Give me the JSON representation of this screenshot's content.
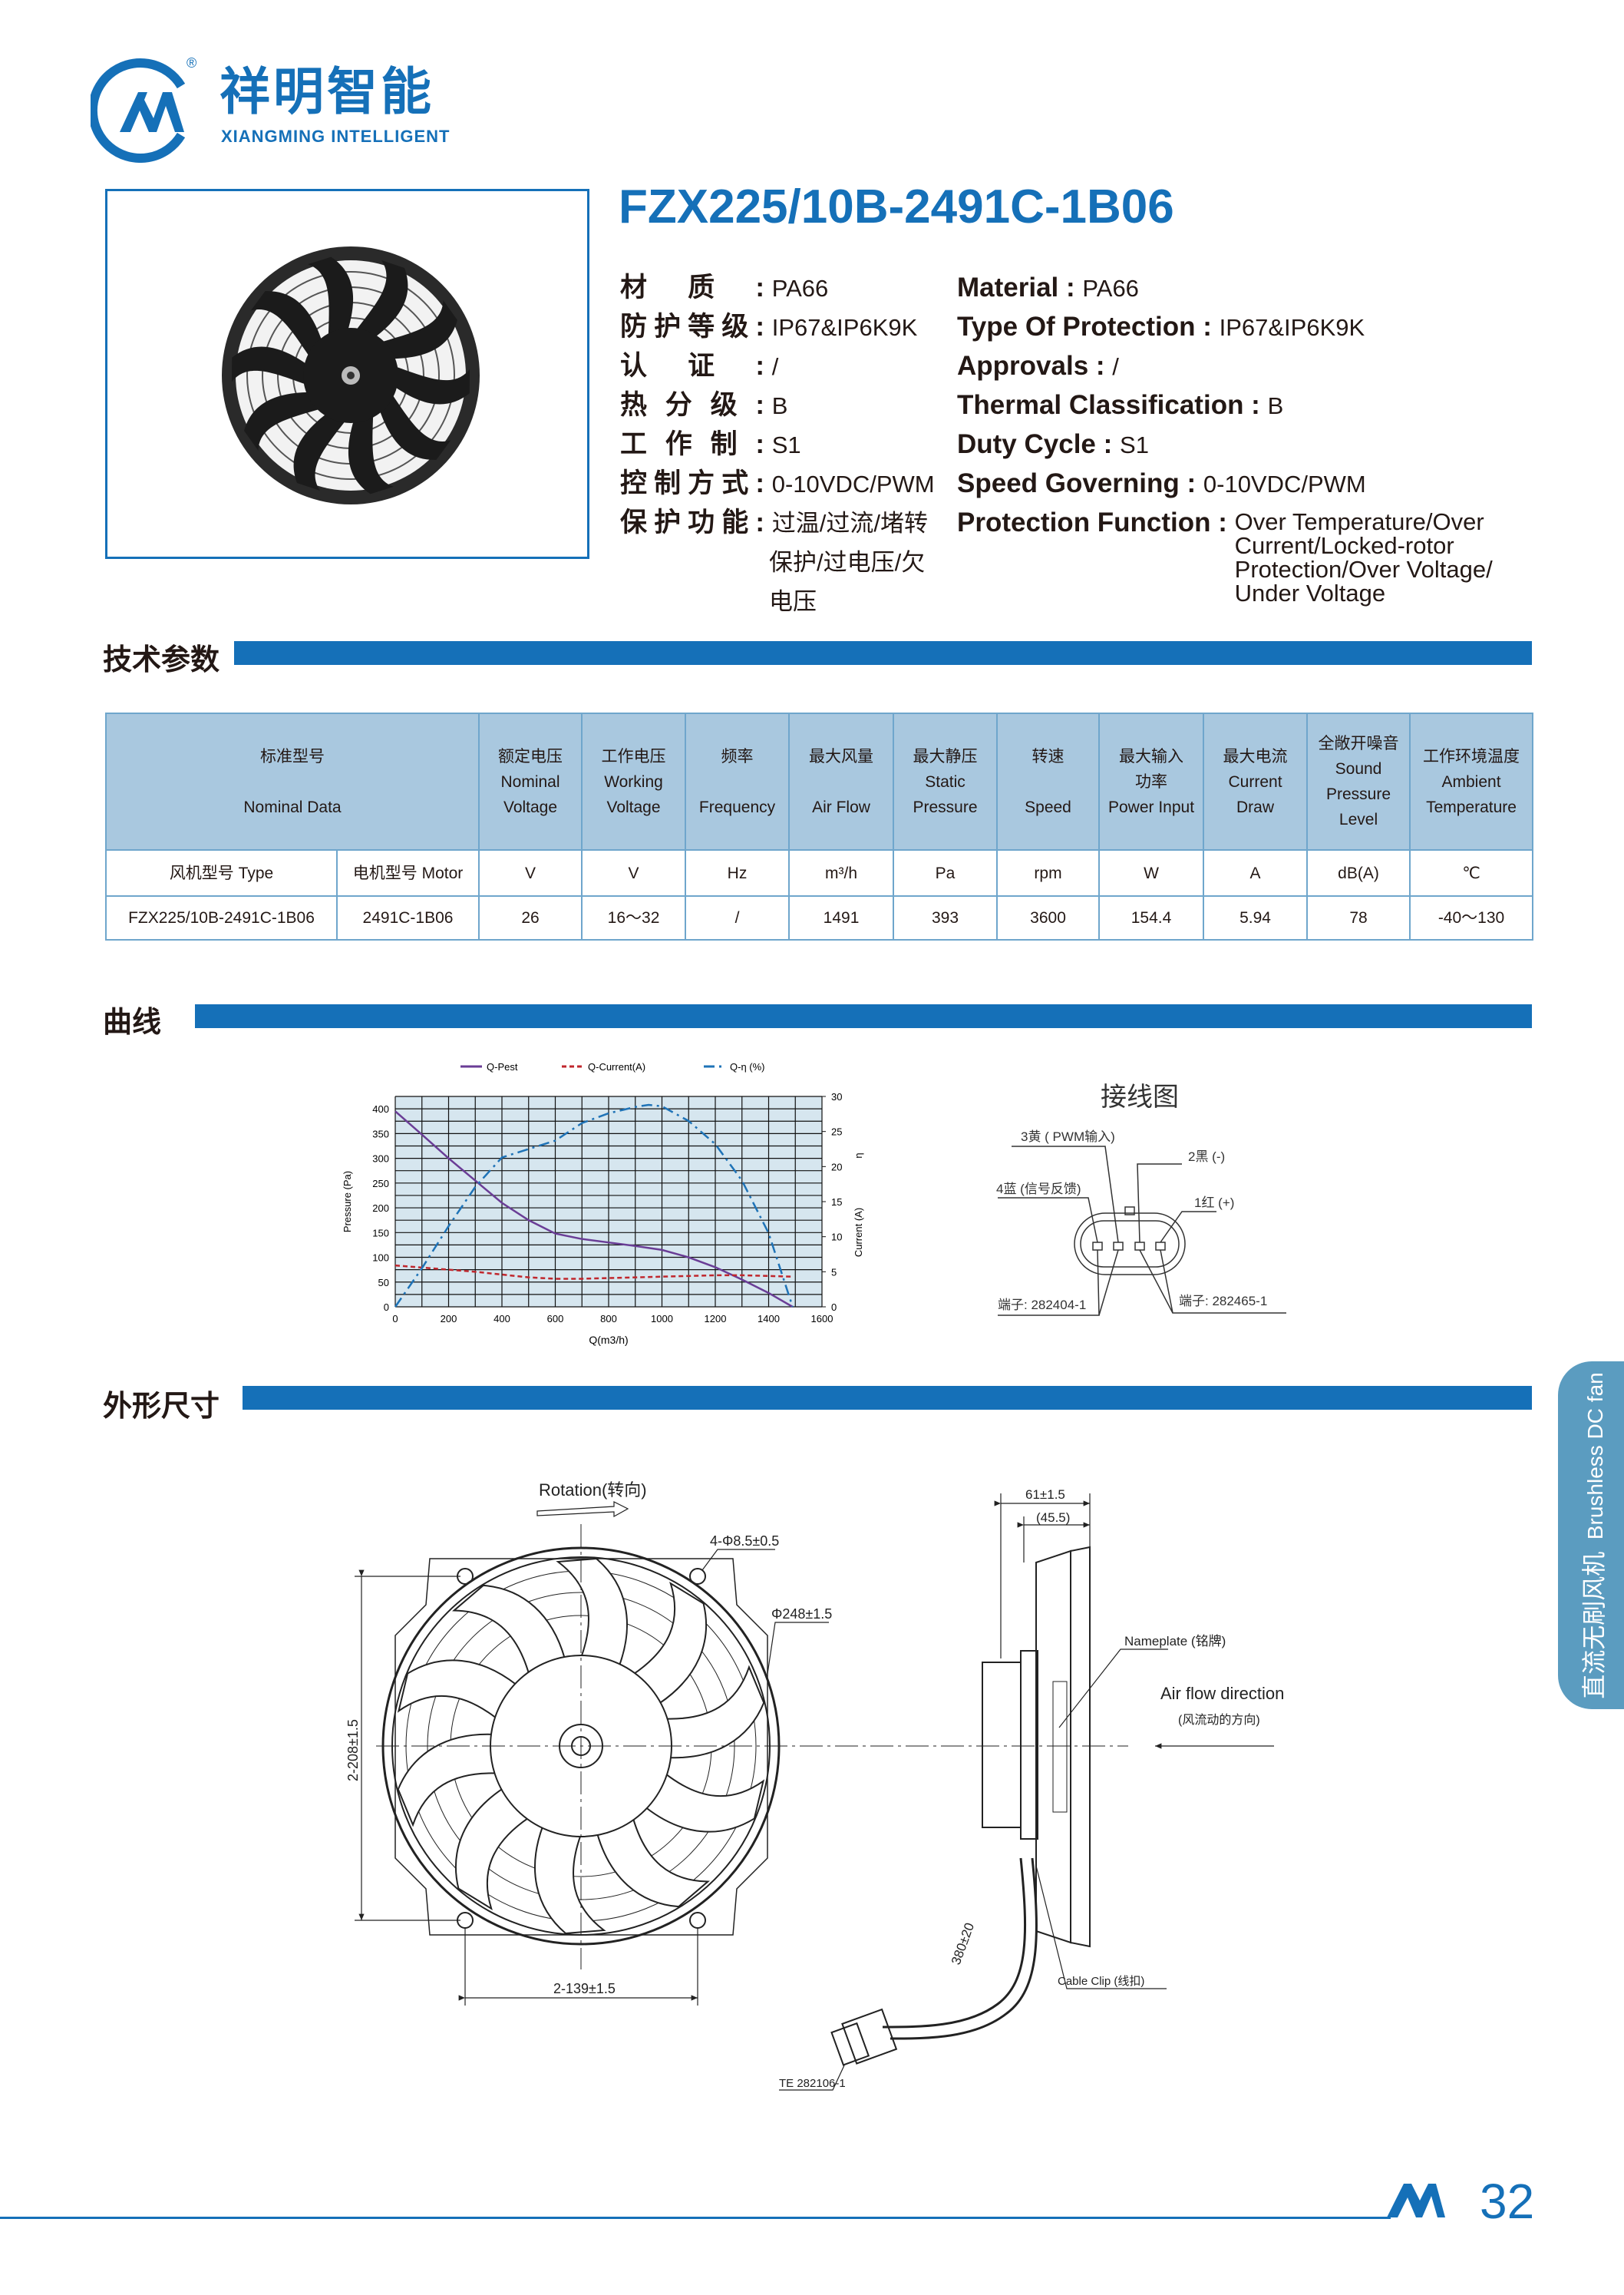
{
  "brand": {
    "name_cn": "祥明智能",
    "name_en": "XIANGMING INTELLIGENT",
    "registered": "®",
    "color": "#1570b8"
  },
  "product": {
    "model": "FZX225/10B-2491C-1B06"
  },
  "specs_cn": [
    {
      "label": "材质:",
      "value": "PA66"
    },
    {
      "label": "防护等级:",
      "value": "IP67&IP6K9K"
    },
    {
      "label": "认证:",
      "value": "/"
    },
    {
      "label": "热分级:",
      "value": "B"
    },
    {
      "label": "工作制:",
      "value": "S1"
    },
    {
      "label": "控制方式:",
      "value": "0-10VDC/PWM"
    },
    {
      "label": "保护功能:",
      "value": "过温/过流/堵转",
      "value2": "保护/过电压/欠",
      "value3": "电压"
    }
  ],
  "specs_en": [
    {
      "label": "Material :",
      "value": "PA66"
    },
    {
      "label": "Type Of Protection :",
      "value": "IP67&IP6K9K"
    },
    {
      "label": "Approvals :",
      "value": "/"
    },
    {
      "label": "Thermal Classification :",
      "value": "B"
    },
    {
      "label": "Duty Cycle :",
      "value": "S1"
    },
    {
      "label": "Speed Governing :",
      "value": "0-10VDC/PWM"
    },
    {
      "label": "Protection Function :",
      "value": "Over Temperature/Over",
      "value2": "Current/Locked-rotor",
      "value3": "Protection/Over Voltage/",
      "value4": "Under Voltage"
    }
  ],
  "sections": {
    "params": "技术参数",
    "curve": "曲线",
    "dimensions": "外形尺寸"
  },
  "table": {
    "header": {
      "nominal_cn": "标准型号",
      "nominal_en": "Nominal Data",
      "cols": [
        [
          "额定电压",
          "Nominal",
          "Voltage"
        ],
        [
          "工作电压",
          "Working",
          "Voltage"
        ],
        [
          "频率",
          "",
          "Frequency"
        ],
        [
          "最大风量",
          "",
          "Air Flow"
        ],
        [
          "最大静压",
          "Static",
          "Pressure"
        ],
        [
          "转速",
          "",
          "Speed"
        ],
        [
          "最大输入",
          "功率",
          "Power Input"
        ],
        [
          "最大电流",
          "Current",
          "Draw"
        ],
        [
          "全敞开噪音",
          "Sound",
          "Pressure",
          "Level"
        ],
        [
          "工作环境温度",
          "Ambient",
          "Temperature"
        ]
      ]
    },
    "units": [
      "风机型号 Type",
      "电机型号 Motor",
      "V",
      "V",
      "Hz",
      "m³/h",
      "Pa",
      "rpm",
      "W",
      "A",
      "dB(A)",
      "℃"
    ],
    "row": [
      "FZX225/10B-2491C-1B06",
      "2491C-1B06",
      "26",
      "16～32",
      "/",
      "1491",
      "393",
      "3600",
      "154.4",
      "5.94",
      "78",
      "-40～130"
    ]
  },
  "chart_data": {
    "type": "line",
    "xlabel": "Q(m3/h)",
    "ylabel": "Pressure (Pa)",
    "y2label": "Current (A)",
    "y2label_b": "η",
    "xlim": [
      0,
      1600
    ],
    "ylim": [
      0,
      425
    ],
    "y2lim": [
      0,
      30
    ],
    "xticks": [
      0,
      200,
      400,
      600,
      800,
      1000,
      1200,
      1400,
      1600
    ],
    "yticks": [
      0,
      50,
      100,
      150,
      200,
      250,
      300,
      350,
      400
    ],
    "y2ticks": [
      0,
      5,
      10,
      15,
      20,
      25,
      30
    ],
    "grid": true,
    "legend": "top",
    "plot_bg": "#d6e6ef",
    "series": [
      {
        "name": "Q-Pest",
        "axis": "left",
        "color": "#6a3d96",
        "style": "solid",
        "x": [
          0,
          100,
          200,
          300,
          400,
          500,
          600,
          700,
          800,
          900,
          1000,
          1100,
          1200,
          1300,
          1400,
          1490
        ],
        "y": [
          395,
          348,
          300,
          255,
          210,
          175,
          148,
          137,
          130,
          123,
          115,
          100,
          80,
          55,
          28,
          0
        ]
      },
      {
        "name": "Q-Current(A)",
        "axis": "right",
        "color": "#c0272d",
        "style": "dashed",
        "x": [
          0,
          100,
          200,
          300,
          400,
          500,
          600,
          700,
          800,
          900,
          1000,
          1100,
          1200,
          1300,
          1400,
          1490
        ],
        "y": [
          5.9,
          5.6,
          5.3,
          5.0,
          4.6,
          4.2,
          4.0,
          4.0,
          4.1,
          4.2,
          4.3,
          4.4,
          4.5,
          4.5,
          4.4,
          4.3
        ]
      },
      {
        "name": "Q-η (%)",
        "axis": "right",
        "color": "#1f73b7",
        "style": "dashdot",
        "x": [
          0,
          100,
          200,
          300,
          400,
          500,
          600,
          700,
          800,
          900,
          950,
          1000,
          1100,
          1200,
          1300,
          1400,
          1490
        ],
        "y": [
          0,
          5.5,
          11.5,
          17.1,
          21.3,
          22.5,
          23.7,
          26.2,
          27.6,
          28.5,
          28.8,
          28.6,
          26.5,
          23.2,
          18,
          10.5,
          0
        ]
      }
    ]
  },
  "wiring": {
    "title": "接线图",
    "pin3": "3黄 ( PWM输入)",
    "pin2": "2黑 (-)",
    "pin4": "4蓝 (信号反馈)",
    "pin1": "1红 (+)",
    "terminal_a": "端子: 282404-1",
    "terminal_b": "端子: 282465-1"
  },
  "drawing": {
    "rotation": "Rotation(转向)",
    "holes": "4-Φ8.5±0.5",
    "diameter": "Φ248±1.5",
    "vertical_pitch": "2-208±1.5",
    "horizontal_pitch": "2-139±1.5",
    "depth": "61±1.5",
    "depth_inner": "(45.5)",
    "nameplate": "Nameplate (铭牌)",
    "airflow": "Air flow direction",
    "airflow_cn": "(风流动的方向)",
    "cable_length": "380±20",
    "cable_clip": "Cable Clip (线扣)",
    "connector": "TE 282106-1"
  },
  "side_tab": {
    "cn": "直流无刷风机",
    "en": "Brushless DC fan"
  },
  "footer": {
    "page": "32"
  }
}
